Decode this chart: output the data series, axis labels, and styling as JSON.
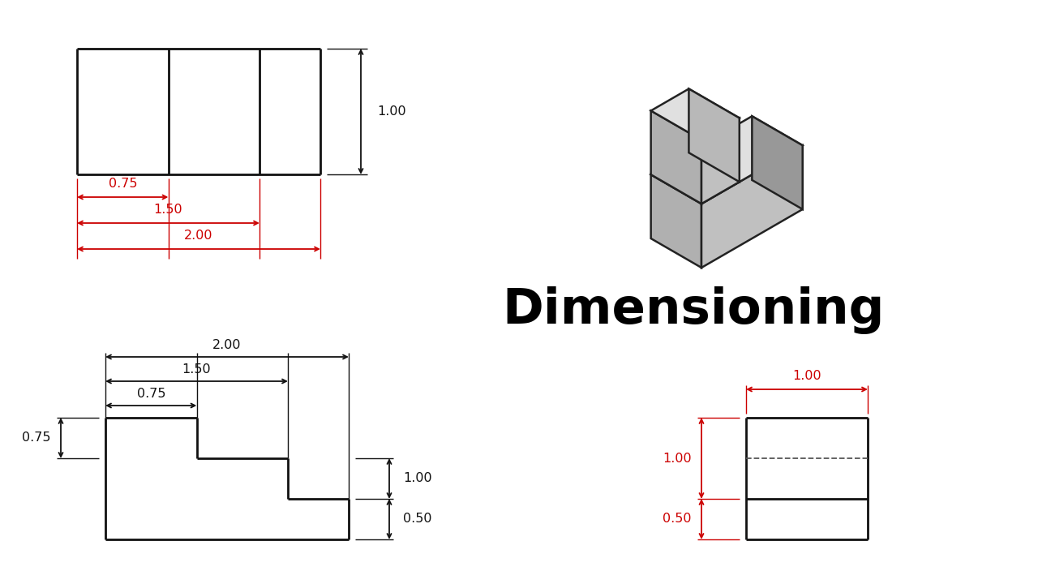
{
  "bg_color": "#ffffff",
  "title_text": "Dimensioning",
  "title_fontsize": 44,
  "dim_color_red": "#cc0000",
  "dim_color_black": "#111111",
  "line_color": "#111111",
  "lw_shape": 2.0,
  "lw_dim": 1.3,
  "lw_ext": 1.0,
  "fs_dim": 11.5
}
